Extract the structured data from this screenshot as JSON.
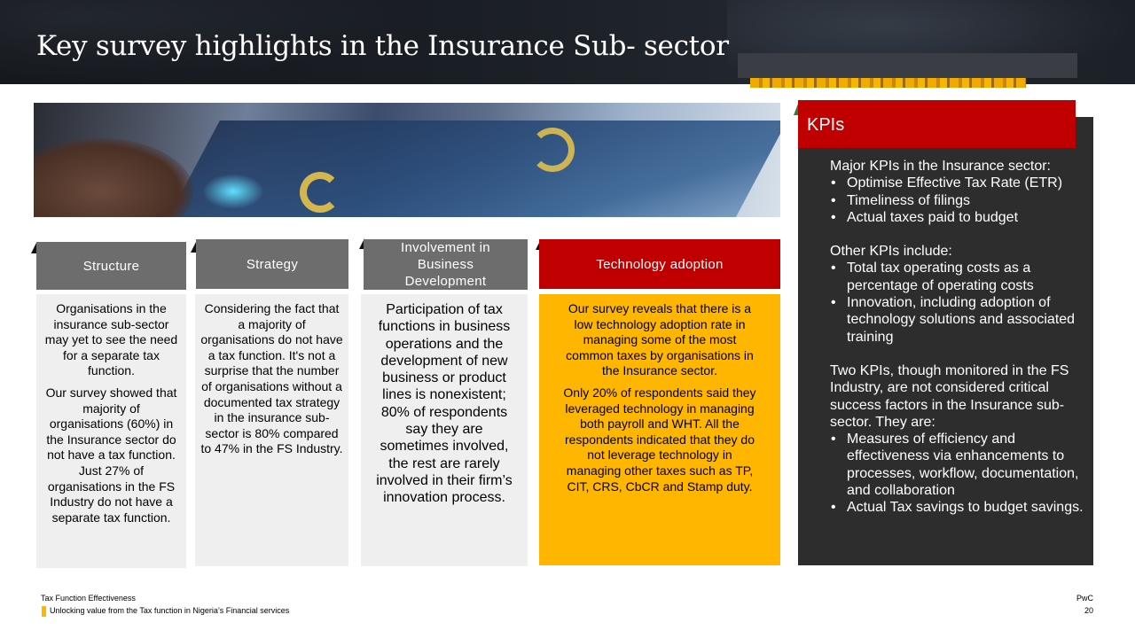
{
  "title": "Key survey highlights in the Insurance Sub- sector",
  "columns": [
    {
      "header": "Structure",
      "paragraphs": [
        "Organisations in the insurance sub-sector may yet to see the need for a separate tax function.",
        "Our survey showed that majority of organisations (60%) in the Insurance sector do not have a tax function. Just 27% of organisations in the FS Industry do not have a separate tax function."
      ]
    },
    {
      "header": "Strategy",
      "paragraphs": [
        "Considering the fact that a majority of organisations do not have a tax function. It's not a surprise that the number of organisations without a documented tax strategy in the insurance sub-sector is 80% compared to 47% in the FS Industry."
      ]
    },
    {
      "header": "Involvement in Business Development",
      "paragraphs": [
        "Participation of tax functions in business operations and the development of new business or product lines is nonexistent; 80% of respondents say they are sometimes involved, the rest are rarely involved in their firm’s innovation process."
      ]
    },
    {
      "header": "Technology adoption",
      "paragraphs": [
        "Our survey reveals that there is a low  technology adoption rate in managing some of the most common taxes by organisations in the Insurance sector.",
        "Only 20% of respondents said they leveraged technology in managing both payroll and WHT. All the respondents indicated that they do not leverage technology in managing other taxes such as TP, CIT, CRS, CbCR and Stamp duty."
      ]
    }
  ],
  "kpi": {
    "title": "KPIs",
    "major_intro": "Major KPIs in the Insurance sector:",
    "major_items": [
      "Optimise Effective Tax Rate (ETR)",
      "Timeliness of filings",
      "Actual taxes paid to budget"
    ],
    "other_intro": "Other KPIs include:",
    "other_items": [
      "Total tax operating costs as a percentage of operating costs",
      "Innovation, including adoption of technology solutions and associated training"
    ],
    "two_intro": "Two KPIs, though monitored in the FS Industry, are not considered critical success factors in the Insurance sub-sector. They are:",
    "two_items": [
      "Measures of efficiency and effectiveness via enhancements to processes, workflow, documentation, and collaboration",
      "Actual Tax savings to budget savings."
    ]
  },
  "footer": {
    "section": "Tax Function Effectiveness",
    "report": "Unlocking value from the Tax function in Nigeria’s Financial services",
    "brand": "PwC",
    "page": "20"
  },
  "colors": {
    "header_dark": "#1b1f26",
    "red": "#c00000",
    "yellow": "#ffb600",
    "grey_header": "#6d6d6d",
    "kpi_panel": "#2d2d2d"
  }
}
